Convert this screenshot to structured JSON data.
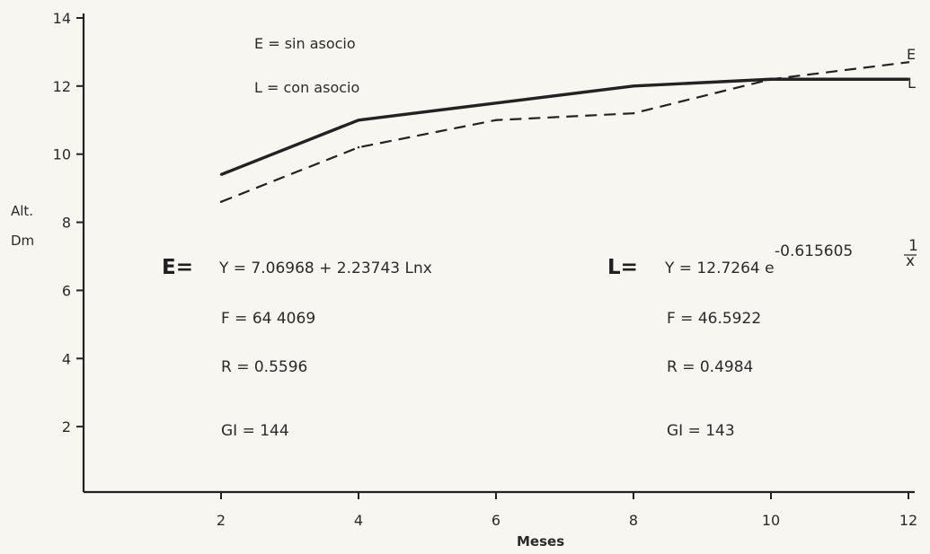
{
  "chart_data": {
    "type": "line",
    "title": "",
    "xlabel": "Meses",
    "ylabel_line1": "Alt.",
    "ylabel_line2": "Dm",
    "x": [
      2,
      4,
      6,
      8,
      10,
      12
    ],
    "xlim": [
      0,
      12
    ],
    "ylim": [
      0,
      14
    ],
    "xticks": [
      "2",
      "4",
      "6",
      "8",
      "10",
      "12"
    ],
    "yticks": [
      "2",
      "4",
      "6",
      "8",
      "10",
      "12",
      "14"
    ],
    "grid": false,
    "legend": [
      "E = sin asocio",
      "L = con asocio"
    ],
    "series": [
      {
        "name": "E",
        "style": "dashed",
        "values": [
          8.6,
          10.2,
          11.0,
          11.2,
          12.2,
          12.7
        ]
      },
      {
        "name": "L",
        "style": "solid",
        "values": [
          9.4,
          11.0,
          11.5,
          12.0,
          12.2,
          12.2
        ]
      }
    ],
    "annotations": {
      "E": {
        "lhs": "E=",
        "equation": "Y = 7.06968 + 2.23743  Lnx",
        "F": "F = 64 4069",
        "R": "R = 0.5596",
        "GI": "GI = 144"
      },
      "L": {
        "lhs": "L=",
        "equation_base": "Y = 12.7264 e",
        "equation_exp": "-0.615605",
        "frac_num": "1",
        "frac_den": "x",
        "F": "F = 46.5922",
        "R": "R = 0.4984",
        "GI": "GI = 143"
      }
    },
    "colors": {
      "line": "#222222",
      "axis": "#222222"
    }
  }
}
